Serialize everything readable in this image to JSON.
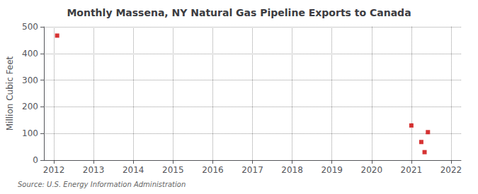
{
  "chart_data": {
    "type": "scatter",
    "title": "Monthly Massena, NY Natural Gas Pipeline Exports to Canada",
    "ylabel": "Million Cubic Feet",
    "annotation": "Source: U.S. Energy Information Administration",
    "x": [
      2012.083,
      2021.0,
      2021.417,
      2021.25,
      2021.333
    ],
    "values": [
      467,
      130,
      105,
      68,
      30
    ],
    "color": "#cc0000",
    "marker": "square",
    "xlim": [
      2011.75,
      2022.25
    ],
    "xticks": [
      2012,
      2013,
      2014,
      2015,
      2016,
      2017,
      2018,
      2019,
      2020,
      2021,
      2022
    ],
    "ylim": [
      0,
      500
    ],
    "yticks": [
      0,
      100,
      200,
      300,
      400,
      500
    ],
    "grid": true
  }
}
